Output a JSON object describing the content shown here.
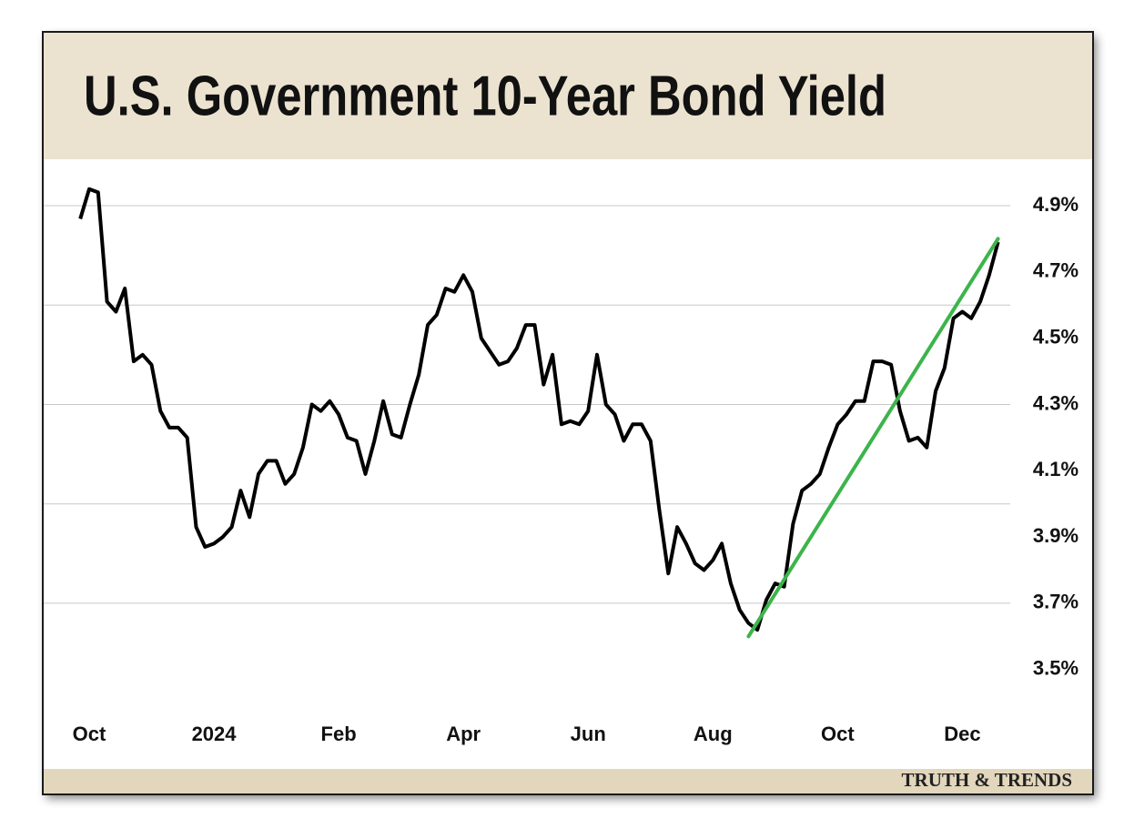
{
  "chart_data": {
    "type": "line",
    "title": "U.S. Government 10-Year Bond Yield",
    "footer": "TRUTH & TRENDS",
    "categories": [
      null,
      "Oct",
      null,
      null,
      null,
      null,
      null,
      null,
      null,
      null,
      null,
      null,
      null,
      null,
      null,
      "2024",
      null,
      null,
      null,
      null,
      null,
      null,
      null,
      null,
      null,
      null,
      null,
      null,
      null,
      "Feb",
      null,
      null,
      null,
      null,
      null,
      null,
      null,
      null,
      null,
      null,
      null,
      null,
      null,
      "Apr",
      null,
      null,
      null,
      null,
      null,
      null,
      null,
      null,
      null,
      null,
      null,
      null,
      null,
      "Jun",
      null,
      null,
      null,
      null,
      null,
      null,
      null,
      null,
      null,
      null,
      null,
      null,
      null,
      "Aug",
      null,
      null,
      null,
      null,
      null,
      null,
      null,
      null,
      null,
      null,
      null,
      null,
      null,
      "Oct",
      null,
      null,
      null,
      null,
      null,
      null,
      null,
      null,
      null,
      null,
      null,
      null,
      null,
      "Dec",
      null,
      null,
      null,
      null
    ],
    "values": [
      4.86,
      4.95,
      4.94,
      4.61,
      4.58,
      4.65,
      4.43,
      4.45,
      4.42,
      4.28,
      4.23,
      4.23,
      4.2,
      3.93,
      3.87,
      3.88,
      3.9,
      3.93,
      4.04,
      3.96,
      4.09,
      4.13,
      4.13,
      4.06,
      4.09,
      4.17,
      4.3,
      4.28,
      4.31,
      4.27,
      4.2,
      4.19,
      4.09,
      4.19,
      4.31,
      4.21,
      4.2,
      4.3,
      4.39,
      4.54,
      4.57,
      4.65,
      4.64,
      4.69,
      4.64,
      4.5,
      4.46,
      4.42,
      4.43,
      4.47,
      4.54,
      4.54,
      4.36,
      4.45,
      4.24,
      4.25,
      4.24,
      4.28,
      4.45,
      4.3,
      4.27,
      4.19,
      4.24,
      4.24,
      4.19,
      3.98,
      3.79,
      3.93,
      3.88,
      3.82,
      3.8,
      3.83,
      3.88,
      3.76,
      3.68,
      3.64,
      3.62,
      3.71,
      3.76,
      3.75,
      3.94,
      4.04,
      4.06,
      4.09,
      4.17,
      4.24,
      4.27,
      4.31,
      4.31,
      4.43,
      4.43,
      4.42,
      4.28,
      4.19,
      4.2,
      4.17,
      4.34,
      4.41,
      4.56,
      4.58,
      4.56,
      4.61,
      4.69,
      4.79
    ],
    "color": "#000000",
    "ylim": [
      3.2,
      5.04
    ],
    "yticks": [
      {
        "value": 3.5,
        "label": "3.5%"
      },
      {
        "value": 3.7,
        "label": "3.7%"
      },
      {
        "value": 3.9,
        "label": "3.9%"
      },
      {
        "value": 4.1,
        "label": "4.1%"
      },
      {
        "value": 4.3,
        "label": "4.3%"
      },
      {
        "value": 4.5,
        "label": "4.5%"
      },
      {
        "value": 4.7,
        "label": "4.7%"
      },
      {
        "value": 4.9,
        "label": "4.9%"
      }
    ],
    "ygrid": [
      3.7,
      4.0,
      4.3,
      4.6,
      4.9
    ],
    "trendline": {
      "color": "#3cb44b",
      "start": {
        "x": 75,
        "y": 3.6
      },
      "end": {
        "x": 103,
        "y": 4.8
      }
    }
  }
}
